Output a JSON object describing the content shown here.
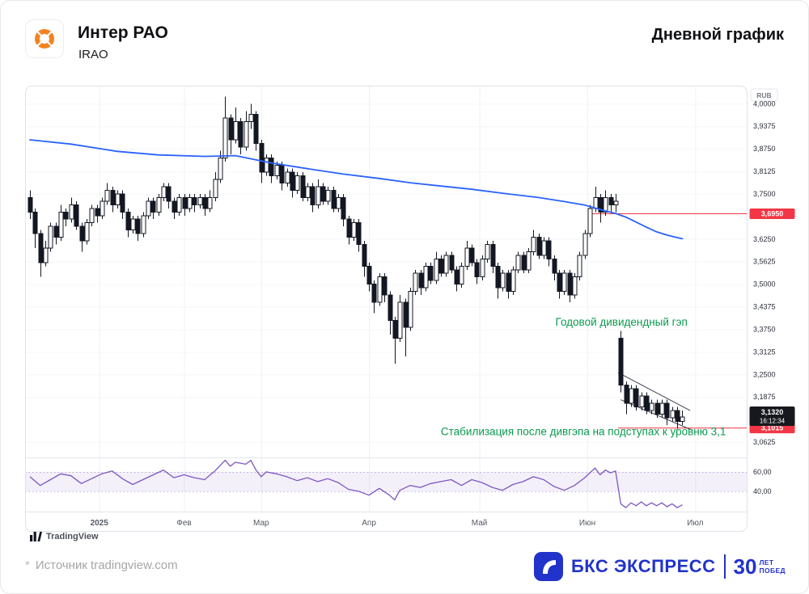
{
  "header": {
    "title": "Интер РАО",
    "ticker": "IRAO",
    "period_label": "Дневной график"
  },
  "attribution": {
    "tradingview": "TradingView"
  },
  "footer": {
    "source_star": "*",
    "source_text": "Источник tradingview.com"
  },
  "brand": {
    "name": "БКС ЭКСПРЕСС",
    "number": "30",
    "word1": "ЛЕТ",
    "word2": "ПОБЕД"
  },
  "chart_data": {
    "type": "candlestick",
    "currency_label": "RUB",
    "ylim": [
      3.02,
      4.05
    ],
    "candle_colors": {
      "up_fill": "#ffffff",
      "down_fill": "#131722",
      "stroke": "#131722"
    },
    "candles": [
      [
        3.74,
        3.76,
        3.68,
        3.7
      ],
      [
        3.7,
        3.71,
        3.6,
        3.64
      ],
      [
        3.64,
        3.65,
        3.52,
        3.56
      ],
      [
        3.56,
        3.62,
        3.55,
        3.6
      ],
      [
        3.6,
        3.67,
        3.59,
        3.66
      ],
      [
        3.66,
        3.67,
        3.61,
        3.63
      ],
      [
        3.63,
        3.72,
        3.62,
        3.7
      ],
      [
        3.7,
        3.71,
        3.66,
        3.68
      ],
      [
        3.68,
        3.74,
        3.67,
        3.72
      ],
      [
        3.72,
        3.73,
        3.65,
        3.66
      ],
      [
        3.66,
        3.67,
        3.59,
        3.62
      ],
      [
        3.62,
        3.68,
        3.61,
        3.67
      ],
      [
        3.67,
        3.72,
        3.66,
        3.71
      ],
      [
        3.71,
        3.72,
        3.67,
        3.69
      ],
      [
        3.69,
        3.74,
        3.68,
        3.73
      ],
      [
        3.73,
        3.78,
        3.72,
        3.76
      ],
      [
        3.76,
        3.77,
        3.7,
        3.72
      ],
      [
        3.72,
        3.76,
        3.71,
        3.75
      ],
      [
        3.75,
        3.76,
        3.68,
        3.7
      ],
      [
        3.7,
        3.71,
        3.63,
        3.65
      ],
      [
        3.65,
        3.69,
        3.64,
        3.68
      ],
      [
        3.68,
        3.69,
        3.62,
        3.64
      ],
      [
        3.64,
        3.7,
        3.63,
        3.69
      ],
      [
        3.69,
        3.74,
        3.68,
        3.73
      ],
      [
        3.73,
        3.74,
        3.68,
        3.7
      ],
      [
        3.7,
        3.75,
        3.69,
        3.74
      ],
      [
        3.74,
        3.78,
        3.73,
        3.77
      ],
      [
        3.77,
        3.78,
        3.71,
        3.73
      ],
      [
        3.73,
        3.74,
        3.68,
        3.7
      ],
      [
        3.7,
        3.75,
        3.69,
        3.74
      ],
      [
        3.74,
        3.75,
        3.69,
        3.71
      ],
      [
        3.71,
        3.75,
        3.7,
        3.74
      ],
      [
        3.74,
        3.75,
        3.7,
        3.72
      ],
      [
        3.72,
        3.75,
        3.71,
        3.74
      ],
      [
        3.74,
        3.75,
        3.69,
        3.71
      ],
      [
        3.71,
        3.76,
        3.7,
        3.74
      ],
      [
        3.74,
        3.81,
        3.73,
        3.79
      ],
      [
        3.79,
        3.87,
        3.78,
        3.85
      ],
      [
        3.85,
        4.02,
        3.84,
        3.96
      ],
      [
        3.96,
        3.97,
        3.86,
        3.9
      ],
      [
        3.9,
        3.99,
        3.89,
        3.95
      ],
      [
        3.95,
        3.96,
        3.86,
        3.88
      ],
      [
        3.88,
        3.98,
        3.87,
        3.95
      ],
      [
        3.95,
        4.0,
        3.93,
        3.97
      ],
      [
        3.97,
        3.98,
        3.87,
        3.89
      ],
      [
        3.89,
        3.9,
        3.78,
        3.81
      ],
      [
        3.81,
        3.86,
        3.8,
        3.85
      ],
      [
        3.85,
        3.86,
        3.78,
        3.8
      ],
      [
        3.8,
        3.84,
        3.79,
        3.83
      ],
      [
        3.83,
        3.84,
        3.76,
        3.78
      ],
      [
        3.78,
        3.82,
        3.77,
        3.81
      ],
      [
        3.81,
        3.82,
        3.74,
        3.76
      ],
      [
        3.76,
        3.81,
        3.75,
        3.8
      ],
      [
        3.8,
        3.81,
        3.73,
        3.74
      ],
      [
        3.74,
        3.78,
        3.73,
        3.77
      ],
      [
        3.77,
        3.78,
        3.7,
        3.72
      ],
      [
        3.72,
        3.79,
        3.71,
        3.77
      ],
      [
        3.77,
        3.78,
        3.72,
        3.73
      ],
      [
        3.73,
        3.77,
        3.72,
        3.76
      ],
      [
        3.76,
        3.77,
        3.7,
        3.71
      ],
      [
        3.71,
        3.75,
        3.7,
        3.74
      ],
      [
        3.74,
        3.75,
        3.66,
        3.68
      ],
      [
        3.68,
        3.69,
        3.61,
        3.63
      ],
      [
        3.63,
        3.68,
        3.62,
        3.67
      ],
      [
        3.67,
        3.68,
        3.59,
        3.61
      ],
      [
        3.61,
        3.62,
        3.52,
        3.55
      ],
      [
        3.55,
        3.56,
        3.48,
        3.5
      ],
      [
        3.5,
        3.51,
        3.42,
        3.45
      ],
      [
        3.45,
        3.53,
        3.44,
        3.52
      ],
      [
        3.52,
        3.53,
        3.45,
        3.47
      ],
      [
        3.47,
        3.48,
        3.36,
        3.4
      ],
      [
        3.4,
        3.41,
        3.28,
        3.35
      ],
      [
        3.35,
        3.47,
        3.34,
        3.45
      ],
      [
        3.45,
        3.46,
        3.3,
        3.38
      ],
      [
        3.38,
        3.49,
        3.37,
        3.48
      ],
      [
        3.48,
        3.54,
        3.47,
        3.53
      ],
      [
        3.53,
        3.54,
        3.47,
        3.49
      ],
      [
        3.49,
        3.56,
        3.48,
        3.55
      ],
      [
        3.55,
        3.56,
        3.5,
        3.51
      ],
      [
        3.51,
        3.59,
        3.5,
        3.57
      ],
      [
        3.57,
        3.58,
        3.52,
        3.53
      ],
      [
        3.53,
        3.59,
        3.52,
        3.58
      ],
      [
        3.58,
        3.59,
        3.53,
        3.54
      ],
      [
        3.54,
        3.55,
        3.48,
        3.5
      ],
      [
        3.5,
        3.56,
        3.49,
        3.55
      ],
      [
        3.55,
        3.62,
        3.54,
        3.6
      ],
      [
        3.6,
        3.61,
        3.55,
        3.56
      ],
      [
        3.56,
        3.57,
        3.5,
        3.52
      ],
      [
        3.52,
        3.58,
        3.51,
        3.57
      ],
      [
        3.57,
        3.62,
        3.56,
        3.61
      ],
      [
        3.61,
        3.62,
        3.53,
        3.55
      ],
      [
        3.55,
        3.56,
        3.46,
        3.49
      ],
      [
        3.49,
        3.54,
        3.48,
        3.53
      ],
      [
        3.53,
        3.54,
        3.46,
        3.48
      ],
      [
        3.48,
        3.55,
        3.47,
        3.54
      ],
      [
        3.54,
        3.59,
        3.53,
        3.58
      ],
      [
        3.58,
        3.59,
        3.53,
        3.54
      ],
      [
        3.54,
        3.6,
        3.53,
        3.59
      ],
      [
        3.59,
        3.65,
        3.58,
        3.63
      ],
      [
        3.63,
        3.64,
        3.57,
        3.58
      ],
      [
        3.58,
        3.63,
        3.57,
        3.62
      ],
      [
        3.62,
        3.63,
        3.55,
        3.57
      ],
      [
        3.57,
        3.58,
        3.51,
        3.53
      ],
      [
        3.53,
        3.54,
        3.46,
        3.48
      ],
      [
        3.48,
        3.54,
        3.47,
        3.53
      ],
      [
        3.53,
        3.54,
        3.45,
        3.47
      ],
      [
        3.47,
        3.53,
        3.46,
        3.52
      ],
      [
        3.52,
        3.59,
        3.51,
        3.58
      ],
      [
        3.58,
        3.65,
        3.57,
        3.64
      ],
      [
        3.64,
        3.72,
        3.63,
        3.71
      ],
      [
        3.71,
        3.77,
        3.7,
        3.74
      ],
      [
        3.74,
        3.75,
        3.67,
        3.7
      ],
      [
        3.7,
        3.76,
        3.69,
        3.74
      ],
      [
        3.74,
        3.75,
        3.7,
        3.72
      ],
      [
        3.72,
        3.75,
        3.7,
        3.73
      ],
      [
        3.35,
        3.37,
        3.2,
        3.22
      ],
      [
        3.22,
        3.23,
        3.14,
        3.17
      ],
      [
        3.17,
        3.22,
        3.16,
        3.21
      ],
      [
        3.21,
        3.22,
        3.15,
        3.16
      ],
      [
        3.16,
        3.2,
        3.15,
        3.19
      ],
      [
        3.19,
        3.2,
        3.14,
        3.15
      ],
      [
        3.15,
        3.18,
        3.14,
        3.17
      ],
      [
        3.17,
        3.18,
        3.13,
        3.14
      ],
      [
        3.14,
        3.18,
        3.13,
        3.17
      ],
      [
        3.17,
        3.18,
        3.11,
        3.13
      ],
      [
        3.13,
        3.16,
        3.12,
        3.15
      ],
      [
        3.15,
        3.16,
        3.1,
        3.12
      ],
      [
        3.12,
        3.15,
        3.11,
        3.132
      ]
    ],
    "ma_line": {
      "name": "moving-average",
      "color": "#2962ff",
      "points": [
        [
          0,
          3.9
        ],
        [
          8,
          3.888
        ],
        [
          17,
          3.868
        ],
        [
          25,
          3.858
        ],
        [
          34,
          3.854
        ],
        [
          40,
          3.856
        ],
        [
          47,
          3.836
        ],
        [
          54,
          3.82
        ],
        [
          61,
          3.805
        ],
        [
          68,
          3.793
        ],
        [
          74,
          3.781
        ],
        [
          80,
          3.772
        ],
        [
          86,
          3.763
        ],
        [
          92,
          3.752
        ],
        [
          99,
          3.74
        ],
        [
          104,
          3.729
        ],
        [
          108,
          3.719
        ],
        [
          110,
          3.711
        ],
        [
          112,
          3.703
        ],
        [
          114,
          3.696
        ],
        [
          116,
          3.686
        ],
        [
          118,
          3.672
        ],
        [
          120,
          3.658
        ],
        [
          122,
          3.645
        ],
        [
          124,
          3.636
        ],
        [
          126,
          3.629
        ],
        [
          127,
          3.626
        ]
      ]
    },
    "levels": [
      {
        "price": 3.695,
        "from_index": 109,
        "label": "3,6950",
        "color": "#f23645"
      },
      {
        "price": 3.1015,
        "from_index": 114.5,
        "label": "3,1015",
        "color": "#f23645"
      }
    ],
    "last_price_tag": {
      "price": 3.132,
      "label": "3,1320",
      "countdown": "16:12:34",
      "bg": "#16181d"
    },
    "channel_lines": [
      [
        114.5,
        3.255,
        128.5,
        3.15
      ],
      [
        115,
        3.18,
        129,
        3.095
      ]
    ],
    "annotation_color": "#0a9a4f",
    "annotations": [
      {
        "text": "Годовой дивидендный гэп",
        "index": 128,
        "price": 3.385,
        "align": "end"
      },
      {
        "text": "Стабилизация после дивгэпа на подступах к уровню 3,1",
        "index": 135.5,
        "price": 3.082,
        "align": "end"
      }
    ],
    "price_axis_labels": [
      {
        "price": 4.0,
        "text": "4,0000"
      },
      {
        "price": 3.9375,
        "text": "3,9375"
      },
      {
        "price": 3.875,
        "text": "3,8750"
      },
      {
        "price": 3.8125,
        "text": "3,8125"
      },
      {
        "price": 3.75,
        "text": "3,7500"
      },
      {
        "price": 3.625,
        "text": "3,6250"
      },
      {
        "price": 3.5625,
        "text": "3,5625"
      },
      {
        "price": 3.5,
        "text": "3,5000"
      },
      {
        "price": 3.4375,
        "text": "3,4375"
      },
      {
        "price": 3.375,
        "text": "3,3750"
      },
      {
        "price": 3.3125,
        "text": "3,3125"
      },
      {
        "price": 3.25,
        "text": "3,2500"
      },
      {
        "price": 3.1875,
        "text": "3,1875"
      },
      {
        "price": 3.0625,
        "text": "3,0625"
      }
    ],
    "time_axis": [
      {
        "label": "2025",
        "index": 13.5,
        "bold": true
      },
      {
        "label": "Фев",
        "index": 30,
        "bold": false
      },
      {
        "label": "Мар",
        "index": 45,
        "bold": false
      },
      {
        "label": "Апр",
        "index": 66,
        "bold": false
      },
      {
        "label": "Май",
        "index": 87.5,
        "bold": false
      },
      {
        "label": "Июн",
        "index": 108.5,
        "bold": false
      },
      {
        "label": "Июл",
        "index": 129.5,
        "bold": false
      }
    ],
    "indicator": {
      "color": "#7e57c2",
      "band": [
        40,
        60
      ],
      "range": [
        19,
        75
      ],
      "labels": [
        {
          "value": 60,
          "text": "60,00"
        },
        {
          "value": 40,
          "text": "40,00"
        }
      ],
      "points": [
        [
          0,
          55
        ],
        [
          2,
          46
        ],
        [
          4,
          52
        ],
        [
          6,
          58
        ],
        [
          8,
          56
        ],
        [
          10,
          48
        ],
        [
          12,
          53
        ],
        [
          14,
          58
        ],
        [
          16,
          61
        ],
        [
          18,
          53
        ],
        [
          20,
          47
        ],
        [
          22,
          52
        ],
        [
          24,
          57
        ],
        [
          26,
          62
        ],
        [
          28,
          54
        ],
        [
          30,
          57
        ],
        [
          32,
          54
        ],
        [
          34,
          52
        ],
        [
          36,
          61
        ],
        [
          38,
          72
        ],
        [
          39,
          66
        ],
        [
          40,
          70
        ],
        [
          42,
          68
        ],
        [
          43,
          72
        ],
        [
          44,
          62
        ],
        [
          45,
          55
        ],
        [
          46,
          60
        ],
        [
          48,
          58
        ],
        [
          50,
          55
        ],
        [
          52,
          51
        ],
        [
          54,
          54
        ],
        [
          56,
          50
        ],
        [
          58,
          53
        ],
        [
          60,
          49
        ],
        [
          62,
          42
        ],
        [
          64,
          40
        ],
        [
          66,
          36
        ],
        [
          68,
          43
        ],
        [
          70,
          36
        ],
        [
          71,
          31
        ],
        [
          72,
          41
        ],
        [
          74,
          46
        ],
        [
          76,
          44
        ],
        [
          78,
          48
        ],
        [
          80,
          50
        ],
        [
          82,
          52
        ],
        [
          84,
          46
        ],
        [
          86,
          52
        ],
        [
          88,
          49
        ],
        [
          90,
          44
        ],
        [
          92,
          41
        ],
        [
          94,
          47
        ],
        [
          96,
          50
        ],
        [
          98,
          55
        ],
        [
          100,
          52
        ],
        [
          102,
          45
        ],
        [
          104,
          41
        ],
        [
          106,
          46
        ],
        [
          108,
          54
        ],
        [
          109,
          59
        ],
        [
          110,
          64
        ],
        [
          111,
          57
        ],
        [
          112,
          62
        ],
        [
          113,
          59
        ],
        [
          114,
          61
        ],
        [
          115,
          27
        ],
        [
          116,
          23
        ],
        [
          117,
          28
        ],
        [
          118,
          25
        ],
        [
          119,
          29
        ],
        [
          120,
          25
        ],
        [
          121,
          28
        ],
        [
          122,
          25
        ],
        [
          123,
          28
        ],
        [
          124,
          24
        ],
        [
          125,
          27
        ],
        [
          126,
          23
        ],
        [
          127,
          26
        ]
      ]
    }
  }
}
